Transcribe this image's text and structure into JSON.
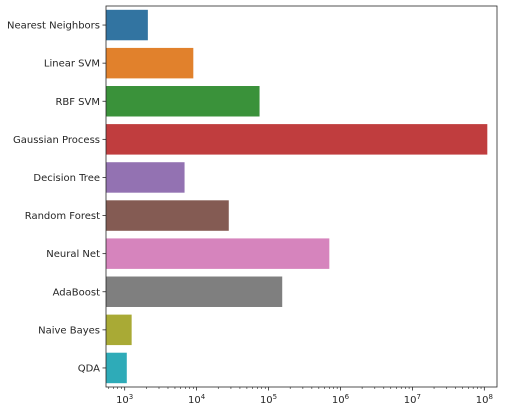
{
  "chart_data": {
    "type": "bar",
    "orientation": "horizontal",
    "xscale": "log",
    "xlim": [
      550,
      150000000
    ],
    "xticks": [
      {
        "value": 1000,
        "base": "10",
        "exp": "3"
      },
      {
        "value": 10000,
        "base": "10",
        "exp": "4"
      },
      {
        "value": 100000,
        "base": "10",
        "exp": "5"
      },
      {
        "value": 1000000,
        "base": "10",
        "exp": "6"
      },
      {
        "value": 10000000,
        "base": "10",
        "exp": "7"
      },
      {
        "value": 100000000,
        "base": "10",
        "exp": "8"
      }
    ],
    "categories": [
      "Nearest Neighbors",
      "Linear SVM",
      "RBF SVM",
      "Gaussian Process",
      "Decision Tree",
      "Random Forest",
      "Neural Net",
      "AdaBoost",
      "Naive Bayes",
      "QDA"
    ],
    "values": [
      2100,
      9000,
      75000,
      110000000,
      6800,
      28000,
      700000,
      155000,
      1250,
      1070
    ],
    "colors": [
      "#3274a1",
      "#e1812c",
      "#3a923a",
      "#c03d3e",
      "#9372b2",
      "#845b53",
      "#d684bd",
      "#7f7f7f",
      "#a9aa35",
      "#2eabb8"
    ],
    "title": "",
    "xlabel": "",
    "ylabel": "",
    "grid": false,
    "legend": "none"
  }
}
